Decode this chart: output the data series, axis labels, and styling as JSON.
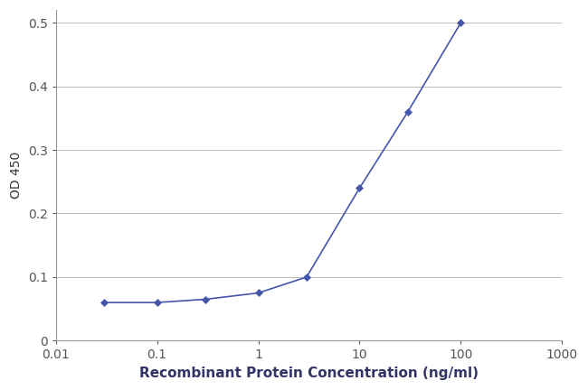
{
  "x": [
    0.03,
    0.1,
    0.3,
    1.0,
    3.0,
    10.0,
    30.0,
    100.0
  ],
  "y": [
    0.06,
    0.06,
    0.065,
    0.075,
    0.1,
    0.24,
    0.36,
    0.5
  ],
  "line_color": "#4455aa",
  "marker_color": "#4455aa",
  "marker": "D",
  "marker_size": 4,
  "line_width": 1.2,
  "xlabel": "Recombinant Protein Concentration (ng/ml)",
  "ylabel": "OD 450",
  "xlim": [
    0.01,
    1000
  ],
  "ylim": [
    0,
    0.52
  ],
  "yticks": [
    0,
    0.1,
    0.2,
    0.3,
    0.4,
    0.5
  ],
  "ytick_labels": [
    "0",
    "0.1",
    "0.2",
    "0.3",
    "0.4",
    "0.5"
  ],
  "xticks": [
    0.01,
    0.1,
    1,
    10,
    100,
    1000
  ],
  "xtick_labels": [
    "0.01",
    "0.1",
    "1",
    "10",
    "100",
    "1000"
  ],
  "background_color": "#ffffff",
  "plot_bg_color": "#ffffff",
  "grid_color": "#bbbbbb",
  "xlabel_fontsize": 11,
  "ylabel_fontsize": 10,
  "tick_fontsize": 10,
  "xlabel_color": "#333366",
  "ylabel_color": "#333333"
}
